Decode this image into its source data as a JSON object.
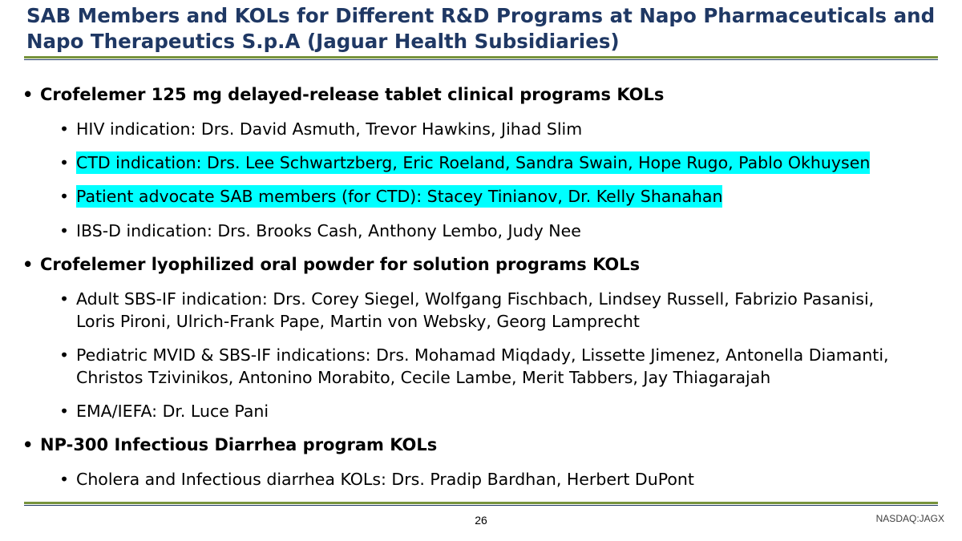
{
  "slide": {
    "title": "SAB Members and KOLs for Different R&D Programs at Napo Pharmaceuticals and Napo Therapeutics S.p.A (Jaguar Health Subsidiaries)",
    "page_number": "26",
    "ticker": "NASDAQ:JAGX"
  },
  "colors": {
    "title": "#1F3864",
    "rule_green": "#77933C",
    "highlight": "#00FFFF"
  },
  "bullet_glyph": "•",
  "sections": [
    {
      "heading": "Crofelemer 125 mg delayed-release tablet clinical programs KOLs",
      "items": [
        {
          "text": "HIV indication: Drs. David Asmuth, Trevor Hawkins, Jihad Slim",
          "highlighted": false
        },
        {
          "text": "CTD indication: Drs. Lee Schwartzberg, Eric Roeland, Sandra Swain, Hope Rugo, Pablo Okhuysen",
          "highlighted": true
        },
        {
          "text": "Patient advocate SAB members (for CTD): Stacey Tinianov, Dr. Kelly Shanahan",
          "highlighted": true
        },
        {
          "text": "IBS-D indication: Drs. Brooks Cash, Anthony Lembo, Judy Nee",
          "highlighted": false
        }
      ]
    },
    {
      "heading": "Crofelemer lyophilized oral powder for solution programs KOLs",
      "items": [
        {
          "text_lines": [
            "Adult SBS-IF indication: Drs. Corey Siegel, Wolfgang Fischbach, Lindsey Russell, Fabrizio Pasanisi,",
            "Loris Pironi, Ulrich-Frank Pape, Martin von Websky, Georg Lamprecht"
          ],
          "highlighted": false
        },
        {
          "text_lines": [
            "Pediatric MVID & SBS-IF indications: Drs. Mohamad Miqdady, Lissette Jimenez, Antonella Diamanti,",
            "Christos Tzivinikos, Antonino Morabito, Cecile Lambe, Merit Tabbers, Jay Thiagarajah"
          ],
          "highlighted": false
        },
        {
          "text": "EMA/IEFA:  Dr. Luce Pani",
          "highlighted": false
        }
      ]
    },
    {
      "heading": "NP-300 Infectious Diarrhea program KOLs",
      "items": [
        {
          "text": "Cholera and Infectious diarrhea KOLs: Drs. Pradip Bardhan, Herbert DuPont",
          "highlighted": false
        }
      ]
    }
  ]
}
